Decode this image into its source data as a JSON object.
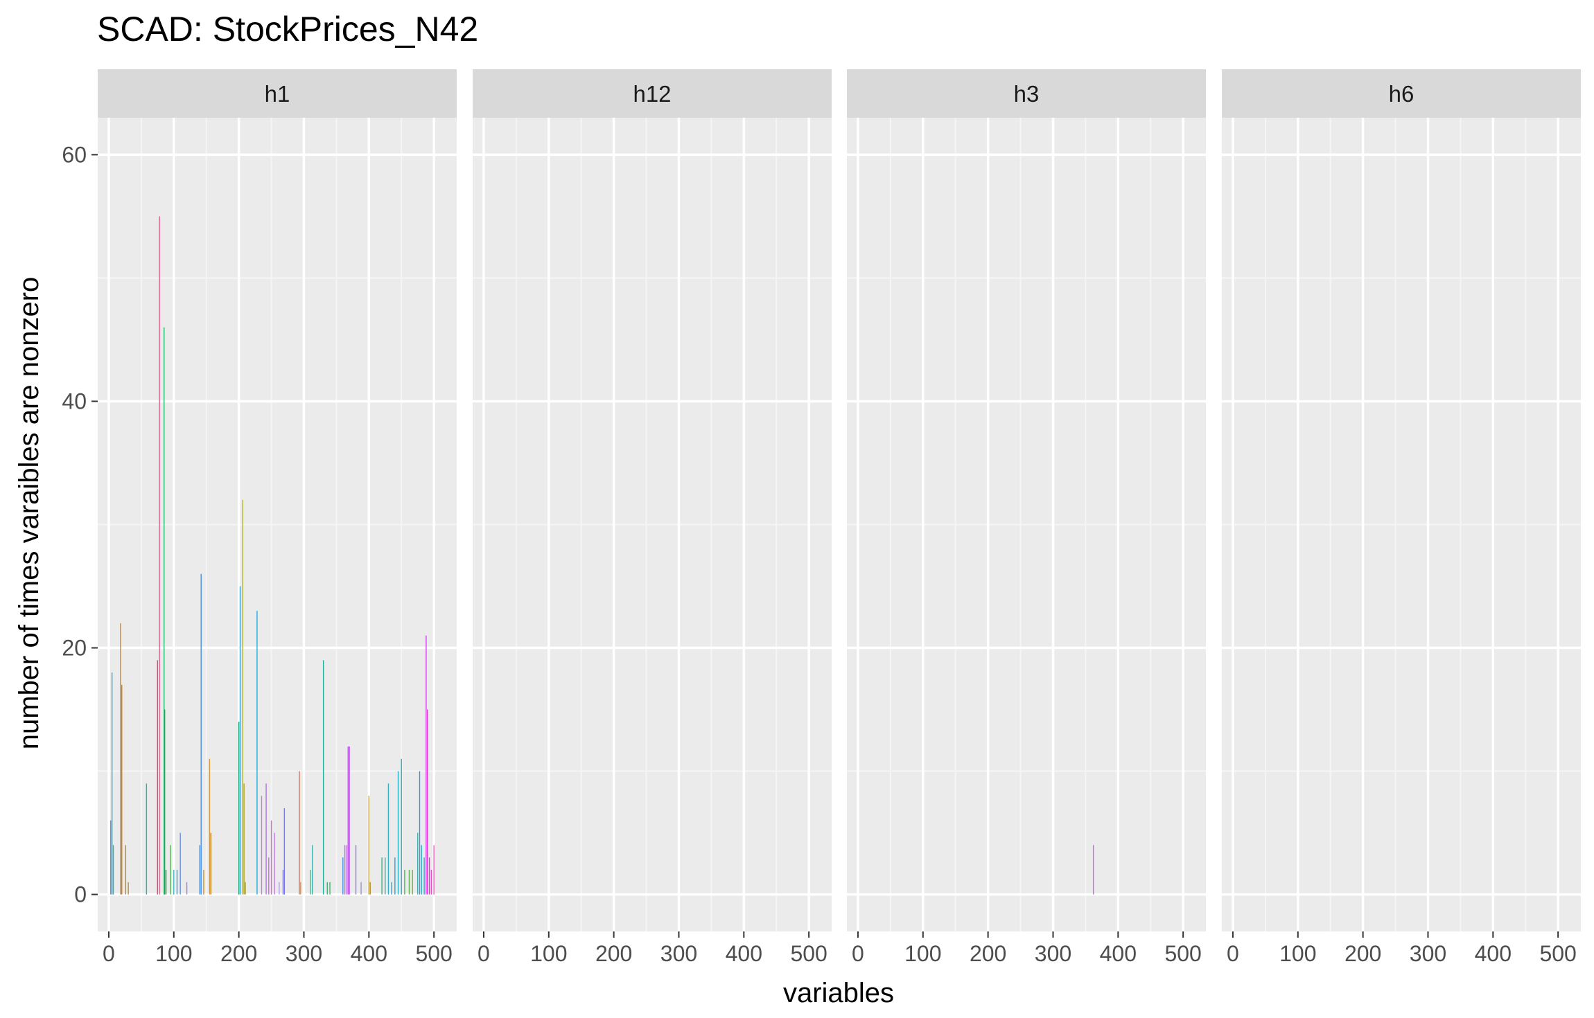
{
  "chart_data": {
    "type": "bar",
    "title": "SCAD: StockPrices_N42",
    "xlabel": "variables",
    "ylabel": "number of times varaibles are nonzero",
    "xlim": [
      -17,
      535
    ],
    "ylim": [
      -3,
      63
    ],
    "x_ticks": [
      0,
      100,
      200,
      300,
      400,
      500
    ],
    "y_ticks": [
      0,
      20,
      40,
      60
    ],
    "grid": true,
    "panels": [
      {
        "name": "h1",
        "bars": [
          {
            "x": 3,
            "y": 6,
            "color": "#3f9fd8"
          },
          {
            "x": 5,
            "y": 18,
            "color": "#40a9c8"
          },
          {
            "x": 7,
            "y": 4,
            "color": "#35b0a8"
          },
          {
            "x": 18,
            "y": 22,
            "color": "#d08a3c"
          },
          {
            "x": 20,
            "y": 17,
            "color": "#c47f20"
          },
          {
            "x": 26,
            "y": 4,
            "color": "#b88a2e"
          },
          {
            "x": 30,
            "y": 1,
            "color": "#b98f3a"
          },
          {
            "x": 58,
            "y": 9,
            "color": "#2bb3a4"
          },
          {
            "x": 75,
            "y": 19,
            "color": "#f0407a"
          },
          {
            "x": 78,
            "y": 55,
            "color": "#f05a8a"
          },
          {
            "x": 85,
            "y": 46,
            "color": "#28b86c"
          },
          {
            "x": 86,
            "y": 15,
            "color": "#28a060"
          },
          {
            "x": 88,
            "y": 2,
            "color": "#2aa84a"
          },
          {
            "x": 95,
            "y": 4,
            "color": "#4fb84f"
          },
          {
            "x": 100,
            "y": 2,
            "color": "#40b0c0"
          },
          {
            "x": 105,
            "y": 2,
            "color": "#3aa8d8"
          },
          {
            "x": 110,
            "y": 5,
            "color": "#6a8fe0"
          },
          {
            "x": 120,
            "y": 1,
            "color": "#9a80e8"
          },
          {
            "x": 140,
            "y": 4,
            "color": "#4a90e0"
          },
          {
            "x": 142,
            "y": 26,
            "color": "#4a8fe0"
          },
          {
            "x": 146,
            "y": 2,
            "color": "#c89030"
          },
          {
            "x": 155,
            "y": 11,
            "color": "#d89a40"
          },
          {
            "x": 157,
            "y": 5,
            "color": "#b07e20"
          },
          {
            "x": 200,
            "y": 14,
            "color": "#1aa070"
          },
          {
            "x": 202,
            "y": 25,
            "color": "#3aa0d0"
          },
          {
            "x": 206,
            "y": 32,
            "color": "#a8b040"
          },
          {
            "x": 208,
            "y": 9,
            "color": "#b0a030"
          },
          {
            "x": 210,
            "y": 1,
            "color": "#a0a030"
          },
          {
            "x": 228,
            "y": 23,
            "color": "#2aa8d8"
          },
          {
            "x": 235,
            "y": 8,
            "color": "#c080e0"
          },
          {
            "x": 242,
            "y": 9,
            "color": "#b070e8"
          },
          {
            "x": 246,
            "y": 3,
            "color": "#c070e0"
          },
          {
            "x": 250,
            "y": 6,
            "color": "#d070d0"
          },
          {
            "x": 255,
            "y": 5,
            "color": "#c080e0"
          },
          {
            "x": 262,
            "y": 1,
            "color": "#b0a0e0"
          },
          {
            "x": 268,
            "y": 2,
            "color": "#8a80e0"
          },
          {
            "x": 270,
            "y": 7,
            "color": "#7a7ae0"
          },
          {
            "x": 293,
            "y": 10,
            "color": "#e07050"
          },
          {
            "x": 295,
            "y": 1,
            "color": "#c0a040"
          },
          {
            "x": 310,
            "y": 2,
            "color": "#40c080"
          },
          {
            "x": 313,
            "y": 4,
            "color": "#40b0b0"
          },
          {
            "x": 330,
            "y": 19,
            "color": "#20b0a0"
          },
          {
            "x": 336,
            "y": 1,
            "color": "#40b070"
          },
          {
            "x": 340,
            "y": 1,
            "color": "#50a870"
          },
          {
            "x": 360,
            "y": 3,
            "color": "#4a90e0"
          },
          {
            "x": 363,
            "y": 4,
            "color": "#b070e8"
          },
          {
            "x": 366,
            "y": 4,
            "color": "#c070e0"
          },
          {
            "x": 368,
            "y": 12,
            "color": "#c050e8"
          },
          {
            "x": 370,
            "y": 12,
            "color": "#b060f0"
          },
          {
            "x": 380,
            "y": 4,
            "color": "#8080e8"
          },
          {
            "x": 388,
            "y": 1,
            "color": "#a090d0"
          },
          {
            "x": 400,
            "y": 8,
            "color": "#c09a40"
          },
          {
            "x": 402,
            "y": 1,
            "color": "#b09030"
          },
          {
            "x": 420,
            "y": 3,
            "color": "#40b080"
          },
          {
            "x": 425,
            "y": 3,
            "color": "#40b0b0"
          },
          {
            "x": 430,
            "y": 9,
            "color": "#30b0c0"
          },
          {
            "x": 435,
            "y": 1,
            "color": "#30a0d0"
          },
          {
            "x": 440,
            "y": 3,
            "color": "#2aa0d8"
          },
          {
            "x": 445,
            "y": 10,
            "color": "#2ab0c0"
          },
          {
            "x": 450,
            "y": 11,
            "color": "#2ab0c8"
          },
          {
            "x": 455,
            "y": 2,
            "color": "#50b060"
          },
          {
            "x": 462,
            "y": 2,
            "color": "#60b050"
          },
          {
            "x": 467,
            "y": 2,
            "color": "#70b040"
          },
          {
            "x": 475,
            "y": 5,
            "color": "#40b0b0"
          },
          {
            "x": 478,
            "y": 10,
            "color": "#4090e0"
          },
          {
            "x": 481,
            "y": 4,
            "color": "#30b0c0"
          },
          {
            "x": 485,
            "y": 3,
            "color": "#40a0d0"
          },
          {
            "x": 488,
            "y": 21,
            "color": "#d040e8"
          },
          {
            "x": 490,
            "y": 15,
            "color": "#e030d0"
          },
          {
            "x": 493,
            "y": 3,
            "color": "#e040d0"
          },
          {
            "x": 496,
            "y": 2,
            "color": "#e050c0"
          },
          {
            "x": 500,
            "y": 4,
            "color": "#f060c0"
          }
        ]
      },
      {
        "name": "h12",
        "bars": []
      },
      {
        "name": "h3",
        "bars": [
          {
            "x": 362,
            "y": 4,
            "color": "#c070e0"
          }
        ]
      },
      {
        "name": "h6",
        "bars": []
      }
    ]
  }
}
